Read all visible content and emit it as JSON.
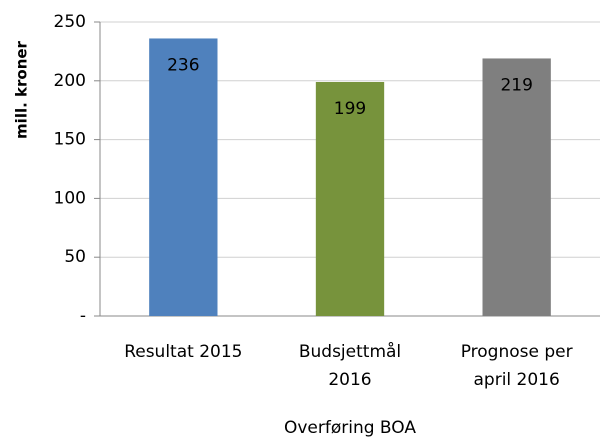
{
  "chart_data": {
    "type": "bar",
    "y_label": "mill. kroner",
    "x_label": "Overføring BOA",
    "categories": [
      "Resultat 2015",
      "Budsjettmål 2016",
      "Prognose per april 2016"
    ],
    "values": [
      236,
      199,
      219
    ],
    "colors": [
      "#4f81bd",
      "#77933c",
      "#7f7f7f"
    ],
    "ylim": [
      0,
      250
    ],
    "yticks": [
      {
        "value": 0,
        "label": "-"
      },
      50,
      100,
      150,
      200,
      250
    ],
    "grid": true
  }
}
